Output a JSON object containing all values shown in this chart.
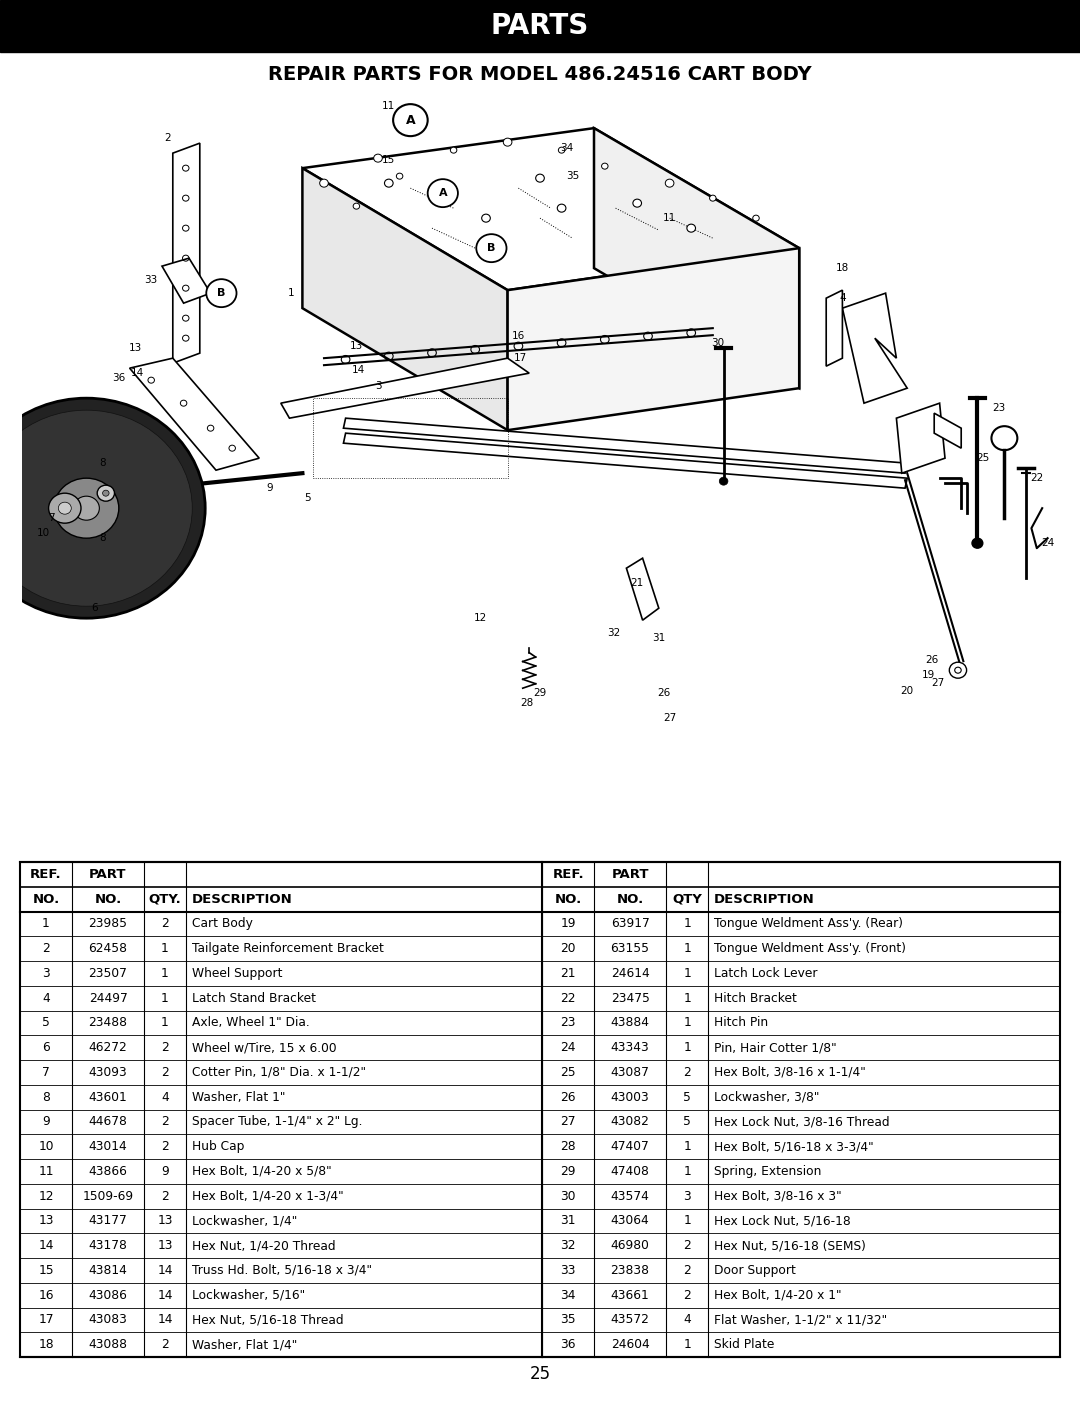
{
  "title_bar_text": "PARTS",
  "title_bar_bg": "#000000",
  "title_bar_text_color": "#ffffff",
  "subtitle": "REPAIR PARTS FOR MODEL 486.24516 CART BODY",
  "page_number": "25",
  "bg_color": "#ffffff",
  "left_rows": [
    [
      "1",
      "23985",
      "2",
      "Cart Body"
    ],
    [
      "2",
      "62458",
      "1",
      "Tailgate Reinforcement Bracket"
    ],
    [
      "3",
      "23507",
      "1",
      "Wheel Support"
    ],
    [
      "4",
      "24497",
      "1",
      "Latch Stand Bracket"
    ],
    [
      "5",
      "23488",
      "1",
      "Axle, Wheel 1\" Dia."
    ],
    [
      "6",
      "46272",
      "2",
      "Wheel w/Tire, 15 x 6.00"
    ],
    [
      "7",
      "43093",
      "2",
      "Cotter Pin, 1/8\" Dia. x 1-1/2\""
    ],
    [
      "8",
      "43601",
      "4",
      "Washer, Flat 1\""
    ],
    [
      "9",
      "44678",
      "2",
      "Spacer Tube, 1-1/4\" x 2\" Lg."
    ],
    [
      "10",
      "43014",
      "2",
      "Hub Cap"
    ],
    [
      "11",
      "43866",
      "9",
      "Hex Bolt, 1/4-20 x 5/8\""
    ],
    [
      "12",
      "1509-69",
      "2",
      "Hex Bolt, 1/4-20 x 1-3/4\""
    ],
    [
      "13",
      "43177",
      "13",
      "Lockwasher, 1/4\""
    ],
    [
      "14",
      "43178",
      "13",
      "Hex Nut, 1/4-20 Thread"
    ],
    [
      "15",
      "43814",
      "14",
      "Truss Hd. Bolt, 5/16-18 x 3/4\""
    ],
    [
      "16",
      "43086",
      "14",
      "Lockwasher, 5/16\""
    ],
    [
      "17",
      "43083",
      "14",
      "Hex Nut, 5/16-18 Thread"
    ],
    [
      "18",
      "43088",
      "2",
      "Washer, Flat 1/4\""
    ]
  ],
  "right_rows": [
    [
      "19",
      "63917",
      "1",
      "Tongue Weldment Ass'y. (Rear)"
    ],
    [
      "20",
      "63155",
      "1",
      "Tongue Weldment Ass'y. (Front)"
    ],
    [
      "21",
      "24614",
      "1",
      "Latch Lock Lever"
    ],
    [
      "22",
      "23475",
      "1",
      "Hitch Bracket"
    ],
    [
      "23",
      "43884",
      "1",
      "Hitch Pin"
    ],
    [
      "24",
      "43343",
      "1",
      "Pin, Hair Cotter 1/8\""
    ],
    [
      "25",
      "43087",
      "2",
      "Hex Bolt, 3/8-16 x 1-1/4\""
    ],
    [
      "26",
      "43003",
      "5",
      "Lockwasher, 3/8\""
    ],
    [
      "27",
      "43082",
      "5",
      "Hex Lock Nut, 3/8-16 Thread"
    ],
    [
      "28",
      "47407",
      "1",
      "Hex Bolt, 5/16-18 x 3-3/4\""
    ],
    [
      "29",
      "47408",
      "1",
      "Spring, Extension"
    ],
    [
      "30",
      "43574",
      "3",
      "Hex Bolt, 3/8-16 x 3\""
    ],
    [
      "31",
      "43064",
      "1",
      "Hex Lock Nut, 5/16-18"
    ],
    [
      "32",
      "46980",
      "2",
      "Hex Nut, 5/16-18 (SEMS)"
    ],
    [
      "33",
      "23838",
      "2",
      "Door Support"
    ],
    [
      "34",
      "43661",
      "2",
      "Hex Bolt, 1/4-20 x 1\""
    ],
    [
      "35",
      "43572",
      "4",
      "Flat Washer, 1-1/2\" x 11/32\""
    ],
    [
      "36",
      "24604",
      "1",
      "Skid Plate"
    ]
  ]
}
